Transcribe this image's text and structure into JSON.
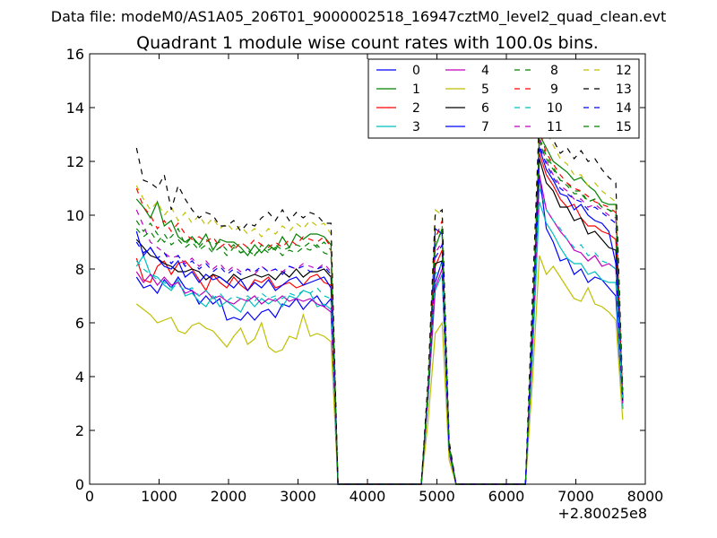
{
  "header": {
    "suptitle": "Data file: modeM0/AS1A05_206T01_9000002518_16947cztM0_level2_quad_clean.evt"
  },
  "chart_data": {
    "type": "line",
    "title": "Quadrant 1 module wise count rates with 100.0s bins.",
    "xlabel": "",
    "ylabel": "",
    "x_offset_label": "+2.80025e8",
    "xlim": [
      0,
      8000
    ],
    "ylim": [
      0,
      16
    ],
    "xticks": [
      0,
      1000,
      2000,
      3000,
      4000,
      5000,
      6000,
      7000,
      8000
    ],
    "yticks": [
      0,
      2,
      4,
      6,
      8,
      10,
      12,
      14,
      16
    ],
    "grid": false,
    "legend_position": "top-right",
    "x": [
      675,
      775,
      875,
      975,
      1075,
      1175,
      1275,
      1375,
      1475,
      1575,
      1675,
      1775,
      1875,
      1975,
      2075,
      2175,
      2275,
      2375,
      2475,
      2575,
      2675,
      2775,
      2875,
      2975,
      3075,
      3175,
      3275,
      3375,
      3475,
      3575,
      3675,
      3775,
      3875,
      3975,
      4075,
      4175,
      4275,
      4375,
      4475,
      4575,
      4675,
      4775,
      4875,
      4975,
      5075,
      5175,
      5275,
      5375,
      5475,
      5575,
      5675,
      5775,
      5875,
      5975,
      6075,
      6175,
      6275,
      6375,
      6475,
      6575,
      6675,
      6775,
      6875,
      6975,
      7075,
      7175,
      7275,
      7375,
      7475,
      7575,
      7675
    ],
    "series": [
      {
        "name": "0",
        "color": "#0000ff",
        "dash": "solid",
        "values": [
          7.7,
          7.3,
          7.4,
          7.1,
          7.6,
          7.3,
          7.7,
          7.3,
          7.2,
          6.7,
          7.0,
          6.7,
          6.9,
          6.1,
          6.2,
          6.1,
          6.4,
          6.1,
          6.4,
          6.5,
          6.2,
          6.7,
          6.6,
          6.9,
          6.5,
          6.8,
          7.0,
          6.6,
          6.9,
          0,
          0,
          0,
          0,
          0,
          0,
          0,
          0,
          0,
          0,
          0,
          0,
          0,
          3.3,
          7.5,
          8.3,
          1.2,
          0,
          0,
          0,
          0,
          0,
          0,
          0,
          0,
          0,
          0,
          0,
          5.0,
          11.5,
          9.5,
          9.0,
          8.3,
          8.4,
          7.8,
          8.0,
          7.5,
          7.7,
          7.6,
          7.3,
          7.0,
          2.8
        ]
      },
      {
        "name": "1",
        "color": "#008000",
        "dash": "solid",
        "values": [
          10.6,
          10.3,
          9.9,
          10.5,
          9.6,
          9.8,
          9.2,
          9.0,
          9.2,
          8.9,
          9.3,
          8.7,
          9.1,
          9.0,
          9.0,
          8.8,
          8.5,
          8.9,
          8.6,
          8.9,
          8.7,
          9.2,
          8.8,
          9.3,
          9.1,
          9.3,
          9.3,
          9.2,
          8.9,
          0,
          0,
          0,
          0,
          0,
          0,
          0,
          0,
          0,
          0,
          0,
          0,
          0,
          3.5,
          8.8,
          9.5,
          1.4,
          0,
          0,
          0,
          0,
          0,
          0,
          0,
          0,
          0,
          0,
          0,
          5.6,
          13.0,
          12.5,
          12.0,
          11.8,
          11.6,
          11.3,
          11.4,
          11.1,
          10.9,
          10.5,
          10.4,
          10.4,
          3.0
        ]
      },
      {
        "name": "2",
        "color": "#ff0000",
        "dash": "solid",
        "values": [
          8.4,
          7.6,
          7.5,
          8.1,
          8.3,
          7.8,
          8.2,
          8.3,
          8.0,
          7.6,
          7.2,
          7.8,
          7.5,
          7.3,
          7.7,
          7.4,
          7.2,
          7.6,
          7.5,
          7.7,
          7.3,
          7.4,
          7.5,
          7.3,
          7.4,
          7.7,
          7.8,
          7.5,
          7.4,
          0,
          0,
          0,
          0,
          0,
          0,
          0,
          0,
          0,
          0,
          0,
          0,
          0,
          3.4,
          8.1,
          8.7,
          1.3,
          0,
          0,
          0,
          0,
          0,
          0,
          0,
          0,
          0,
          0,
          0,
          5.3,
          12.3,
          11.5,
          11.1,
          10.6,
          10.3,
          10.4,
          9.9,
          9.6,
          9.6,
          9.4,
          9.3,
          9.1,
          3.2
        ]
      },
      {
        "name": "3",
        "color": "#00bfbf",
        "dash": "solid",
        "values": [
          8.1,
          8.5,
          7.8,
          7.7,
          7.4,
          7.2,
          7.6,
          7.0,
          7.1,
          6.8,
          6.6,
          7.0,
          6.6,
          6.8,
          6.6,
          6.4,
          6.9,
          6.6,
          6.9,
          6.7,
          6.9,
          6.6,
          7.0,
          6.9,
          7.2,
          7.1,
          6.6,
          6.7,
          6.5,
          0,
          0,
          0,
          0,
          0,
          0,
          0,
          0,
          0,
          0,
          0,
          0,
          0,
          3.2,
          7.2,
          7.8,
          1.2,
          0,
          0,
          0,
          0,
          0,
          0,
          0,
          0,
          0,
          0,
          0,
          4.7,
          10.5,
          9.7,
          9.3,
          8.8,
          8.4,
          8.2,
          8.2,
          7.8,
          7.9,
          7.6,
          7.5,
          7.5,
          2.8
        ]
      },
      {
        "name": "4",
        "color": "#bf00bf",
        "dash": "solid",
        "values": [
          7.9,
          7.5,
          7.8,
          7.4,
          7.7,
          7.4,
          7.5,
          7.1,
          7.2,
          7.0,
          7.2,
          6.9,
          7.0,
          6.8,
          6.7,
          6.9,
          6.8,
          7.0,
          6.7,
          6.9,
          6.8,
          7.0,
          6.8,
          6.9,
          6.8,
          6.9,
          6.7,
          6.6,
          6.4,
          0,
          0,
          0,
          0,
          0,
          0,
          0,
          0,
          0,
          0,
          0,
          0,
          0,
          3.3,
          7.3,
          8.0,
          1.2,
          0,
          0,
          0,
          0,
          0,
          0,
          0,
          0,
          0,
          0,
          0,
          5.1,
          11.5,
          10.2,
          9.8,
          9.4,
          9.1,
          8.7,
          8.6,
          8.3,
          8.5,
          8.1,
          8.2,
          8.0,
          3.0
        ]
      },
      {
        "name": "5",
        "color": "#bfbf00",
        "dash": "solid",
        "values": [
          6.7,
          6.5,
          6.3,
          6.0,
          6.1,
          6.2,
          5.7,
          5.6,
          5.9,
          6.0,
          5.8,
          5.7,
          5.4,
          5.1,
          5.5,
          5.8,
          5.2,
          5.4,
          6.0,
          5.1,
          4.9,
          5.0,
          5.5,
          5.4,
          6.3,
          5.5,
          5.6,
          5.5,
          5.3,
          0,
          0,
          0,
          0,
          0,
          0,
          0,
          0,
          0,
          0,
          0,
          0,
          0,
          2.4,
          5.6,
          6.0,
          0.9,
          0,
          0,
          0,
          0,
          0,
          0,
          0,
          0,
          0,
          0,
          0,
          3.8,
          8.5,
          7.8,
          8.1,
          7.7,
          7.3,
          6.9,
          6.8,
          7.3,
          6.7,
          6.6,
          6.4,
          6.1,
          2.4
        ]
      },
      {
        "name": "6",
        "color": "#000000",
        "dash": "solid",
        "values": [
          9.1,
          8.8,
          8.5,
          8.4,
          8.2,
          8.1,
          7.9,
          7.9,
          8.0,
          7.9,
          7.6,
          7.8,
          7.7,
          7.5,
          7.8,
          7.6,
          7.7,
          7.8,
          7.7,
          7.8,
          7.6,
          7.9,
          7.7,
          8.0,
          7.7,
          7.9,
          7.9,
          8.0,
          7.7,
          0,
          0,
          0,
          0,
          0,
          0,
          0,
          0,
          0,
          0,
          0,
          0,
          0,
          3.6,
          8.2,
          8.3,
          1.3,
          0,
          0,
          0,
          0,
          0,
          0,
          0,
          0,
          0,
          0,
          0,
          5.9,
          12.1,
          11.2,
          10.9,
          10.3,
          10.3,
          9.8,
          9.9,
          9.3,
          9.4,
          9.1,
          8.8,
          8.7,
          3.1
        ]
      },
      {
        "name": "7",
        "color": "#0000ff",
        "dash": "solid",
        "values": [
          9.4,
          8.5,
          8.8,
          8.4,
          8.1,
          8.0,
          8.3,
          7.7,
          7.9,
          7.5,
          7.8,
          7.6,
          7.7,
          7.5,
          7.3,
          7.6,
          7.2,
          7.5,
          7.3,
          7.6,
          7.2,
          7.4,
          7.6,
          7.7,
          7.4,
          7.5,
          7.6,
          7.7,
          7.3,
          0,
          0,
          0,
          0,
          0,
          0,
          0,
          0,
          0,
          0,
          0,
          0,
          0,
          3.5,
          9.5,
          9.3,
          1.4,
          0,
          0,
          0,
          0,
          0,
          0,
          0,
          0,
          0,
          0,
          0,
          6.0,
          12.5,
          11.7,
          11.3,
          10.8,
          10.7,
          10.2,
          10.4,
          10.0,
          9.8,
          9.7,
          9.4,
          8.2,
          3.2
        ]
      },
      {
        "name": "8",
        "color": "#008000",
        "dash": "dashed",
        "values": [
          9.8,
          9.4,
          9.7,
          9.3,
          9.0,
          9.2,
          9.5,
          8.9,
          9.2,
          8.8,
          9.1,
          8.9,
          9.0,
          8.7,
          8.9,
          8.6,
          8.8,
          8.5,
          8.9,
          8.7,
          8.9,
          8.7,
          8.8,
          8.9,
          8.8,
          9.0,
          8.8,
          9.0,
          8.7,
          0,
          0,
          0,
          0,
          0,
          0,
          0,
          0,
          0,
          0,
          0,
          0,
          0,
          3.6,
          9.2,
          9.6,
          1.5,
          0,
          0,
          0,
          0,
          0,
          0,
          0,
          0,
          0,
          0,
          0,
          6.1,
          12.9,
          12.2,
          11.8,
          11.3,
          11.2,
          10.9,
          10.9,
          10.5,
          10.6,
          10.3,
          10.2,
          10.1,
          3.3
        ]
      },
      {
        "name": "9",
        "color": "#ff0000",
        "dash": "dashed",
        "values": [
          11.0,
          10.3,
          10.0,
          9.5,
          9.8,
          9.4,
          9.7,
          9.3,
          9.1,
          9.2,
          9.0,
          9.2,
          8.8,
          9.0,
          8.7,
          9.0,
          8.8,
          9.1,
          8.9,
          8.8,
          9.0,
          8.8,
          9.1,
          8.9,
          9.2,
          9.1,
          9.0,
          9.2,
          8.8,
          0,
          0,
          0,
          0,
          0,
          0,
          0,
          0,
          0,
          0,
          0,
          0,
          0,
          3.7,
          9.1,
          9.8,
          1.5,
          0,
          0,
          0,
          0,
          0,
          0,
          0,
          0,
          0,
          0,
          0,
          6.2,
          13.2,
          12.3,
          11.9,
          11.5,
          11.2,
          11.0,
          10.9,
          10.7,
          10.5,
          10.4,
          10.3,
          10.1,
          3.3
        ]
      },
      {
        "name": "10",
        "color": "#00bfbf",
        "dash": "dashed",
        "values": [
          8.3,
          8.0,
          7.8,
          7.6,
          7.5,
          7.3,
          7.4,
          7.2,
          7.3,
          7.0,
          7.2,
          6.9,
          7.1,
          6.8,
          7.0,
          6.9,
          7.0,
          6.8,
          7.1,
          6.9,
          7.0,
          6.9,
          7.1,
          7.0,
          7.2,
          7.1,
          7.3,
          7.0,
          6.9,
          0,
          0,
          0,
          0,
          0,
          0,
          0,
          0,
          0,
          0,
          0,
          0,
          0,
          3.4,
          7.8,
          8.2,
          1.3,
          0,
          0,
          0,
          0,
          0,
          0,
          0,
          0,
          0,
          0,
          0,
          5.2,
          11.0,
          10.2,
          9.8,
          9.5,
          9.1,
          8.8,
          8.9,
          8.5,
          8.6,
          8.3,
          8.2,
          8.0,
          3.0
        ]
      },
      {
        "name": "11",
        "color": "#bf00bf",
        "dash": "dashed",
        "values": [
          10.2,
          9.6,
          9.0,
          8.8,
          8.6,
          8.4,
          8.5,
          8.2,
          8.4,
          8.1,
          8.3,
          8.0,
          8.2,
          7.9,
          8.1,
          7.9,
          8.0,
          7.8,
          8.1,
          7.9,
          8.0,
          7.9,
          8.1,
          8.0,
          8.2,
          8.1,
          8.0,
          8.2,
          7.9,
          0,
          0,
          0,
          0,
          0,
          0,
          0,
          0,
          0,
          0,
          0,
          0,
          0,
          3.6,
          8.6,
          9.0,
          1.4,
          0,
          0,
          0,
          0,
          0,
          0,
          0,
          0,
          0,
          0,
          0,
          5.8,
          12.8,
          12.0,
          11.5,
          11.1,
          10.9,
          10.6,
          10.6,
          10.3,
          10.4,
          10.2,
          10.0,
          9.9,
          3.2
        ]
      },
      {
        "name": "12",
        "color": "#bfbf00",
        "dash": "dashed",
        "values": [
          11.1,
          10.6,
          10.2,
          10.5,
          10.0,
          10.3,
          9.8,
          10.1,
          9.7,
          10.0,
          9.6,
          9.9,
          9.5,
          9.7,
          9.4,
          9.6,
          9.3,
          9.5,
          9.2,
          9.5,
          9.3,
          9.6,
          9.4,
          9.7,
          9.5,
          9.8,
          9.6,
          9.7,
          9.3,
          0,
          0,
          0,
          0,
          0,
          0,
          0,
          0,
          0,
          0,
          0,
          0,
          0,
          3.9,
          10.2,
          10.0,
          1.6,
          0,
          0,
          0,
          0,
          0,
          0,
          0,
          0,
          0,
          0,
          0,
          6.8,
          14.0,
          13.1,
          12.6,
          12.1,
          11.9,
          11.5,
          11.5,
          11.1,
          11.2,
          10.9,
          10.7,
          10.5,
          3.4
        ]
      },
      {
        "name": "13",
        "color": "#000000",
        "dash": "dashed",
        "values": [
          12.5,
          11.3,
          11.2,
          11.0,
          11.5,
          10.2,
          11.1,
          10.6,
          10.2,
          9.9,
          10.1,
          10.0,
          9.6,
          9.6,
          9.8,
          9.4,
          9.7,
          9.6,
          9.9,
          10.1,
          9.8,
          10.2,
          9.8,
          10.1,
          9.9,
          10.1,
          10.0,
          9.7,
          9.7,
          0,
          0,
          0,
          0,
          0,
          0,
          0,
          0,
          0,
          0,
          0,
          0,
          0,
          4.0,
          10.0,
          10.2,
          1.6,
          0,
          0,
          0,
          0,
          0,
          0,
          0,
          0,
          0,
          0,
          0,
          7.0,
          13.6,
          13.0,
          12.8,
          12.3,
          12.5,
          12.1,
          12.4,
          12.0,
          12.1,
          11.7,
          11.4,
          11.2,
          3.5
        ]
      },
      {
        "name": "14",
        "color": "#0000ff",
        "dash": "dashed",
        "values": [
          9.0,
          8.6,
          8.8,
          8.4,
          8.6,
          8.2,
          8.5,
          8.1,
          8.3,
          8.0,
          8.2,
          7.9,
          8.1,
          7.8,
          8.0,
          7.8,
          8.0,
          7.9,
          8.1,
          7.9,
          8.0,
          7.8,
          8.1,
          8.0,
          8.1,
          7.9,
          8.0,
          8.1,
          7.8,
          0,
          0,
          0,
          0,
          0,
          0,
          0,
          0,
          0,
          0,
          0,
          0,
          0,
          3.5,
          8.4,
          8.9,
          1.4,
          0,
          0,
          0,
          0,
          0,
          0,
          0,
          0,
          0,
          0,
          0,
          5.7,
          12.6,
          11.9,
          11.4,
          11.0,
          10.8,
          10.6,
          10.5,
          10.2,
          10.3,
          10.1,
          9.9,
          9.7,
          3.1
        ]
      },
      {
        "name": "15",
        "color": "#008000",
        "dash": "dashed",
        "values": [
          9.5,
          9.2,
          9.4,
          9.0,
          9.3,
          8.9,
          9.1,
          8.8,
          9.0,
          8.7,
          8.9,
          8.6,
          8.8,
          8.5,
          8.8,
          8.6,
          8.7,
          8.5,
          8.8,
          8.6,
          8.8,
          8.5,
          8.7,
          8.6,
          8.8,
          8.7,
          8.9,
          8.6,
          8.5,
          0,
          0,
          0,
          0,
          0,
          0,
          0,
          0,
          0,
          0,
          0,
          0,
          0,
          3.6,
          9.0,
          9.4,
          1.4,
          0,
          0,
          0,
          0,
          0,
          0,
          0,
          0,
          0,
          0,
          0,
          6.0,
          12.7,
          12.1,
          11.7,
          11.3,
          11.1,
          10.8,
          10.8,
          10.5,
          10.6,
          10.3,
          10.2,
          10.0,
          3.2
        ]
      }
    ]
  }
}
